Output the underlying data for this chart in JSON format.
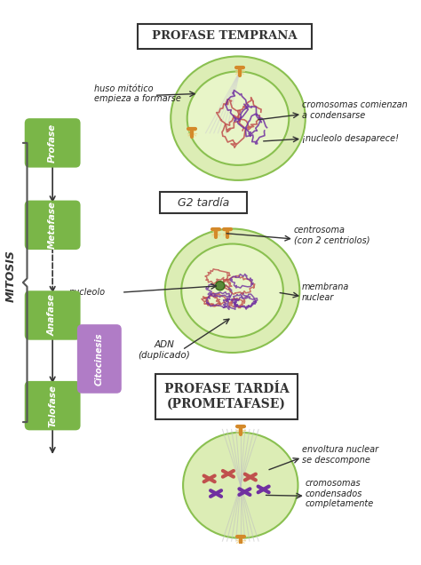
{
  "bg_color": "#ffffff",
  "cell_outer_color": "#dcedb5",
  "cell_inner_color": "#e8f5c8",
  "nucleus_color": "#e2f0c5",
  "centrosome_color": "#d4892a",
  "chromosome_red": "#c0504d",
  "chromosome_purple": "#7030a0",
  "spindle_color": "#c8c8c8",
  "nucleolus_color": "#5a8a3a",
  "left_box_green": "#7ab648",
  "left_box_purple": "#b07cc6",
  "title1": "PROFASE TEMPRANA",
  "title2": "G2 tardía",
  "title3": "PROFASE TARDÍA\n(PROMETAFASE)",
  "label_huso": "huso mitótico\nempieza a formarse",
  "label_cromo1": "cromosomas comienzan\na condensarse",
  "label_nucl1": "¡nucleolo desaparece!",
  "label_centro": "centrosoma\n(con 2 centriolos)",
  "label_nucleolo": "nucleolo",
  "label_memnucl": "membrana\nnuclear",
  "label_adn": "ADN\n(duplicado)",
  "label_env": "envoltura nuclear\nse descompone",
  "label_cromo3": "cromosomas\ncondensados\ncompletamente",
  "stages": [
    "Profase",
    "Metafase",
    "Anafase",
    "Telofase"
  ],
  "cyto_label": "Citocinesis",
  "cyto_color": "#b07cc6",
  "mitosis_label": "MITOSIS"
}
